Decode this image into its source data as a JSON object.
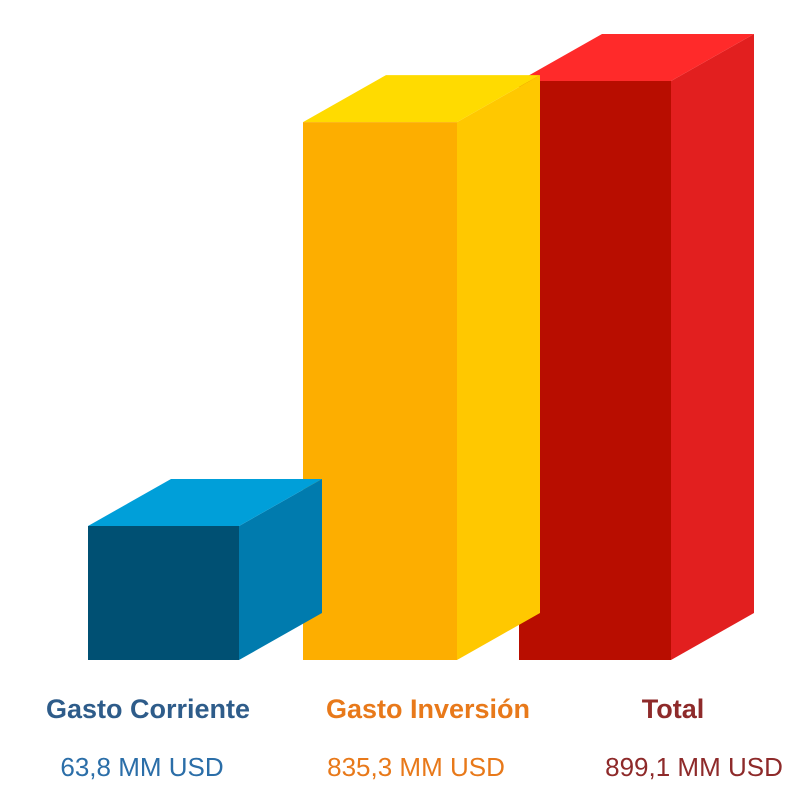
{
  "chart_data": {
    "type": "bar",
    "style": "3d",
    "categories": [
      "Gasto Corriente",
      "Gasto Inversión",
      "Total"
    ],
    "values": [
      63.8,
      835.3,
      899.1
    ],
    "value_labels": [
      "63,8 MM USD",
      "835,3 MM USD",
      "899,1 MM USD"
    ],
    "ylim": [
      0,
      899.1
    ],
    "grid": false,
    "legend": "none",
    "series_colors": [
      {
        "front": "#005073",
        "side": "#007BAE",
        "top": "#009FD9",
        "label": "#2E5C8A",
        "value_label": "#2B6EA8"
      },
      {
        "front": "#FDAE00",
        "side": "#FFC800",
        "top": "#FFDB00",
        "label": "#E8791A",
        "value_label": "#E8791A"
      },
      {
        "front": "#B80D00",
        "side": "#E21F1F",
        "top": "#FF2A2A",
        "label": "#8E2A2A",
        "value_label": "#8E2A2A"
      }
    ]
  }
}
